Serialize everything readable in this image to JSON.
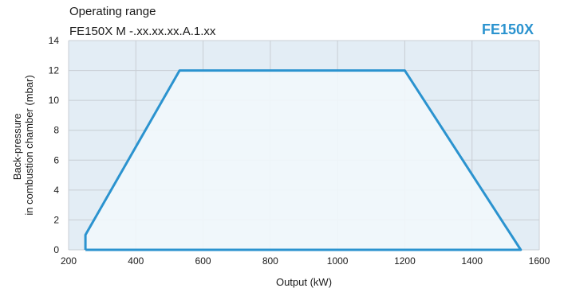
{
  "header": {
    "title": "Operating range",
    "subtitle": "FE150X    M -.xx.xx.xx.A.1.xx",
    "brand": "FE150X"
  },
  "colors": {
    "outer_region": "#e3edf5",
    "inner_region": "#f1f7fb",
    "grid": "#c8ced4",
    "curve": "#2b93cf",
    "brand": "#2b93cf"
  },
  "chart_data": {
    "type": "area",
    "title": "Operating range",
    "subtitle": "FE150X    M -.xx.xx.xx.A.1.xx",
    "xlabel": "Output (kW)",
    "ylabel_lines": [
      "Back-pressure",
      "in combustion chamber (mbar)"
    ],
    "xlim": [
      200,
      1600
    ],
    "ylim": [
      0,
      14
    ],
    "xticks": [
      200,
      400,
      600,
      800,
      1000,
      1200,
      1400,
      1600
    ],
    "yticks": [
      0,
      2,
      4,
      6,
      8,
      10,
      12,
      14
    ],
    "grid": true,
    "series": [
      {
        "name": "",
        "x": [
          250,
          250,
          530,
          1200,
          1545,
          250
        ],
        "y": [
          0,
          1,
          12,
          12,
          0,
          0
        ]
      }
    ]
  }
}
